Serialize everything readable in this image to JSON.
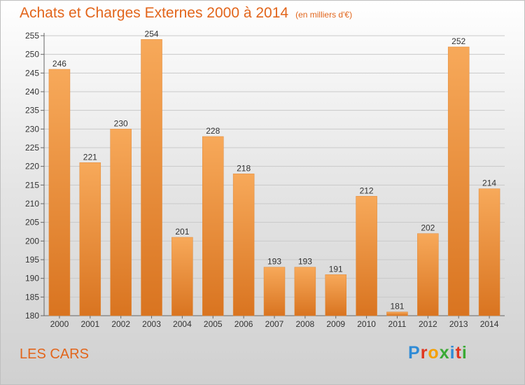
{
  "header": {
    "title": "Achats et Charges Externes 2000 à 2014",
    "unit": "(en milliers d'€)"
  },
  "footer": {
    "place": "LES CARS",
    "brand_letters": [
      "P",
      "r",
      "o",
      "x",
      "i",
      "t",
      "i"
    ],
    "brand_colors": [
      "#2f8bd6",
      "#e0351e",
      "#f5a000",
      "#3aaa35",
      "#2f8bd6",
      "#e0351e",
      "#3aaa35"
    ]
  },
  "colors": {
    "accent": "#e2651b",
    "bar_light": "#f7a95a",
    "bar_dark": "#d97420"
  },
  "chart_data": {
    "type": "bar",
    "categories": [
      "2000",
      "2001",
      "2002",
      "2003",
      "2004",
      "2005",
      "2006",
      "2007",
      "2008",
      "2009",
      "2010",
      "2011",
      "2012",
      "2013",
      "2014"
    ],
    "values": [
      246,
      221,
      230,
      254,
      201,
      228,
      218,
      193,
      193,
      191,
      212,
      181,
      202,
      252,
      214
    ],
    "ylim": [
      180,
      255
    ],
    "yticks": [
      180,
      185,
      190,
      195,
      200,
      205,
      210,
      215,
      220,
      225,
      230,
      235,
      240,
      245,
      250,
      255
    ],
    "grid": true,
    "data_labels": true
  }
}
